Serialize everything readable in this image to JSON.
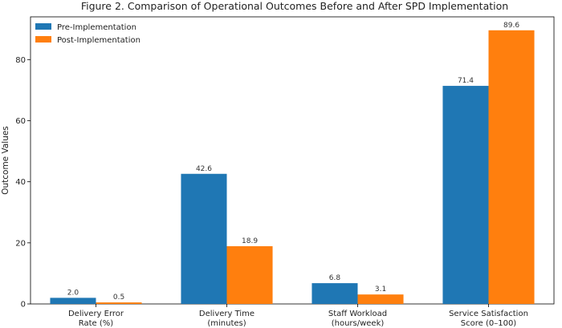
{
  "chart_data": {
    "type": "bar",
    "title": "Figure 2. Comparison of Operational Outcomes Before and After SPD Implementation",
    "xlabel": "",
    "ylabel": "Outcome Values",
    "ylim": [
      0,
      94
    ],
    "yticks": [
      0,
      20,
      40,
      60,
      80
    ],
    "categories": [
      [
        "Delivery Error",
        "Rate (%)"
      ],
      [
        "Delivery Time",
        "(minutes)"
      ],
      [
        "Staff Workload",
        "(hours/week)"
      ],
      [
        "Service Satisfaction",
        "Score (0–100)"
      ]
    ],
    "series": [
      {
        "name": "Pre-Implementation",
        "color": "#1f77b4",
        "values": [
          2.0,
          42.6,
          6.8,
          71.4
        ],
        "labels": [
          "2.0",
          "42.6",
          "6.8",
          "71.4"
        ]
      },
      {
        "name": "Post-Implementation",
        "color": "#ff7f0e",
        "values": [
          0.5,
          18.9,
          3.1,
          89.6
        ],
        "labels": [
          "0.5",
          "18.9",
          "3.1",
          "89.6"
        ]
      }
    ],
    "legend": "top-left",
    "grid": false
  }
}
